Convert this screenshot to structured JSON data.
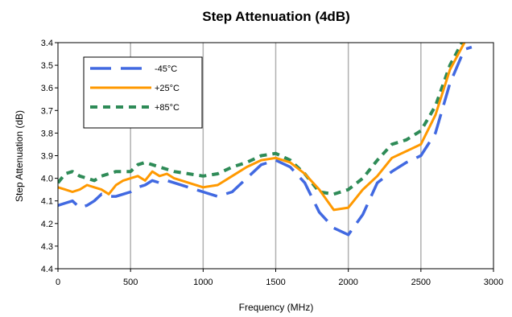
{
  "chart_data": {
    "type": "line",
    "title": "Step Attenuation (4dB)",
    "xlabel": "Frequency (MHz)",
    "ylabel": "Step Attenuation (dB)",
    "xlim": [
      0,
      3000
    ],
    "ylim": [
      3.4,
      4.4
    ],
    "y_inverted": true,
    "x_ticks": [
      0,
      500,
      1000,
      1500,
      2000,
      2500,
      3000
    ],
    "y_ticks": [
      "3.4",
      "3.5",
      "3.6",
      "3.7",
      "3.8",
      "3.9",
      "4.0",
      "4.1",
      "4.2",
      "4.3",
      "4.4"
    ],
    "grid": "vertical",
    "legend_position": "top-left",
    "series": [
      {
        "name": "-45°C",
        "color": "#4169E1",
        "dash": "long-dash",
        "x": [
          0,
          50,
          100,
          150,
          200,
          250,
          300,
          350,
          400,
          450,
          500,
          550,
          600,
          650,
          700,
          750,
          800,
          900,
          1000,
          1100,
          1200,
          1300,
          1400,
          1500,
          1600,
          1700,
          1800,
          1900,
          2000,
          2100,
          2200,
          2300,
          2400,
          2500,
          2600,
          2700,
          2800,
          2850
        ],
        "values": [
          4.12,
          4.11,
          4.1,
          4.13,
          4.12,
          4.1,
          4.07,
          4.08,
          4.08,
          4.07,
          4.06,
          4.04,
          4.03,
          4.01,
          4.02,
          4.01,
          4.02,
          4.04,
          4.06,
          4.08,
          4.06,
          4.0,
          3.94,
          3.92,
          3.95,
          4.02,
          4.15,
          4.22,
          4.25,
          4.16,
          4.02,
          3.97,
          3.93,
          3.9,
          3.8,
          3.58,
          3.43,
          3.42
        ]
      },
      {
        "name": "+25°C",
        "color": "#FF9900",
        "dash": "solid",
        "x": [
          0,
          50,
          100,
          150,
          200,
          250,
          300,
          350,
          400,
          450,
          500,
          550,
          600,
          650,
          700,
          750,
          800,
          900,
          1000,
          1100,
          1200,
          1300,
          1400,
          1500,
          1600,
          1700,
          1800,
          1900,
          2000,
          2100,
          2200,
          2300,
          2400,
          2500,
          2600,
          2700,
          2800
        ],
        "values": [
          4.04,
          4.05,
          4.06,
          4.05,
          4.03,
          4.04,
          4.05,
          4.07,
          4.03,
          4.01,
          4.0,
          3.99,
          4.01,
          3.97,
          3.99,
          3.98,
          4.0,
          4.02,
          4.04,
          4.03,
          3.99,
          3.95,
          3.92,
          3.91,
          3.93,
          3.98,
          4.05,
          4.14,
          4.13,
          4.05,
          3.99,
          3.91,
          3.88,
          3.85,
          3.72,
          3.52,
          3.4
        ]
      },
      {
        "name": "+85°C",
        "color": "#2E8B57",
        "dash": "short-dash",
        "x": [
          0,
          50,
          100,
          150,
          200,
          250,
          300,
          350,
          400,
          450,
          500,
          550,
          600,
          650,
          700,
          750,
          800,
          900,
          1000,
          1100,
          1200,
          1300,
          1400,
          1500,
          1600,
          1700,
          1800,
          1900,
          2000,
          2100,
          2200,
          2300,
          2400,
          2500,
          2600,
          2700,
          2800
        ],
        "values": [
          4.02,
          3.98,
          3.97,
          3.99,
          4.0,
          4.01,
          3.99,
          3.98,
          3.97,
          3.97,
          3.97,
          3.94,
          3.93,
          3.94,
          3.95,
          3.96,
          3.97,
          3.98,
          3.99,
          3.98,
          3.95,
          3.93,
          3.9,
          3.89,
          3.92,
          3.98,
          4.06,
          4.07,
          4.05,
          4.0,
          3.92,
          3.85,
          3.83,
          3.79,
          3.68,
          3.5,
          3.38
        ]
      }
    ]
  }
}
